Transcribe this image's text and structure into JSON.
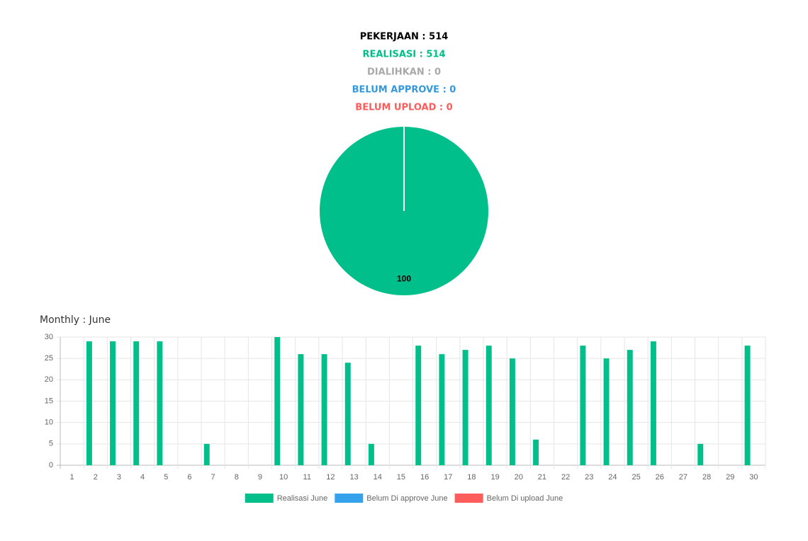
{
  "summary": [
    {
      "text": "PEKERJAAN : 514",
      "color": "#000000"
    },
    {
      "text": "REALISASI : 514",
      "color": "#00bf8a"
    },
    {
      "text": "DIALIHKAN : 0",
      "color": "#a9a9a9"
    },
    {
      "text": "BELUM APPROVE : 0",
      "color": "#3498db"
    },
    {
      "text": "BELUM UPLOAD : 0",
      "color": "#ff5b5b"
    }
  ],
  "chart_data": [
    {
      "type": "pie",
      "values": [
        100
      ],
      "colors": [
        "#00bf8a"
      ]
    },
    {
      "type": "bar",
      "title": "Monthly : June",
      "categories": [
        "1",
        "2",
        "3",
        "4",
        "5",
        "6",
        "7",
        "8",
        "9",
        "10",
        "11",
        "12",
        "13",
        "14",
        "15",
        "16",
        "17",
        "18",
        "19",
        "20",
        "21",
        "22",
        "23",
        "24",
        "25",
        "26",
        "27",
        "28",
        "29",
        "30"
      ],
      "series": [
        {
          "name": "Realisasi June",
          "color": "#00bf8a",
          "values": [
            0,
            29,
            29,
            29,
            29,
            0,
            5,
            0,
            0,
            30,
            26,
            26,
            24,
            5,
            0,
            28,
            26,
            27,
            28,
            25,
            6,
            0,
            28,
            25,
            27,
            29,
            0,
            5,
            0,
            28
          ]
        },
        {
          "name": "Belum Di approve June",
          "color": "#36a2eb",
          "values": [
            0,
            0,
            0,
            0,
            0,
            0,
            0,
            0,
            0,
            0,
            0,
            0,
            0,
            0,
            0,
            0,
            0,
            0,
            0,
            0,
            0,
            0,
            0,
            0,
            0,
            0,
            0,
            0,
            0,
            0
          ]
        },
        {
          "name": "Belum Di upload June",
          "color": "#ff5c5c",
          "values": [
            0,
            0,
            0,
            0,
            0,
            0,
            0,
            0,
            0,
            0,
            0,
            0,
            0,
            0,
            0,
            0,
            0,
            0,
            0,
            0,
            0,
            0,
            0,
            0,
            0,
            0,
            0,
            0,
            0,
            0
          ]
        }
      ],
      "ylim": [
        0,
        30
      ],
      "yticks": [
        0,
        5,
        10,
        15,
        20,
        25,
        30
      ],
      "grid": true,
      "legend": "bottom"
    }
  ]
}
